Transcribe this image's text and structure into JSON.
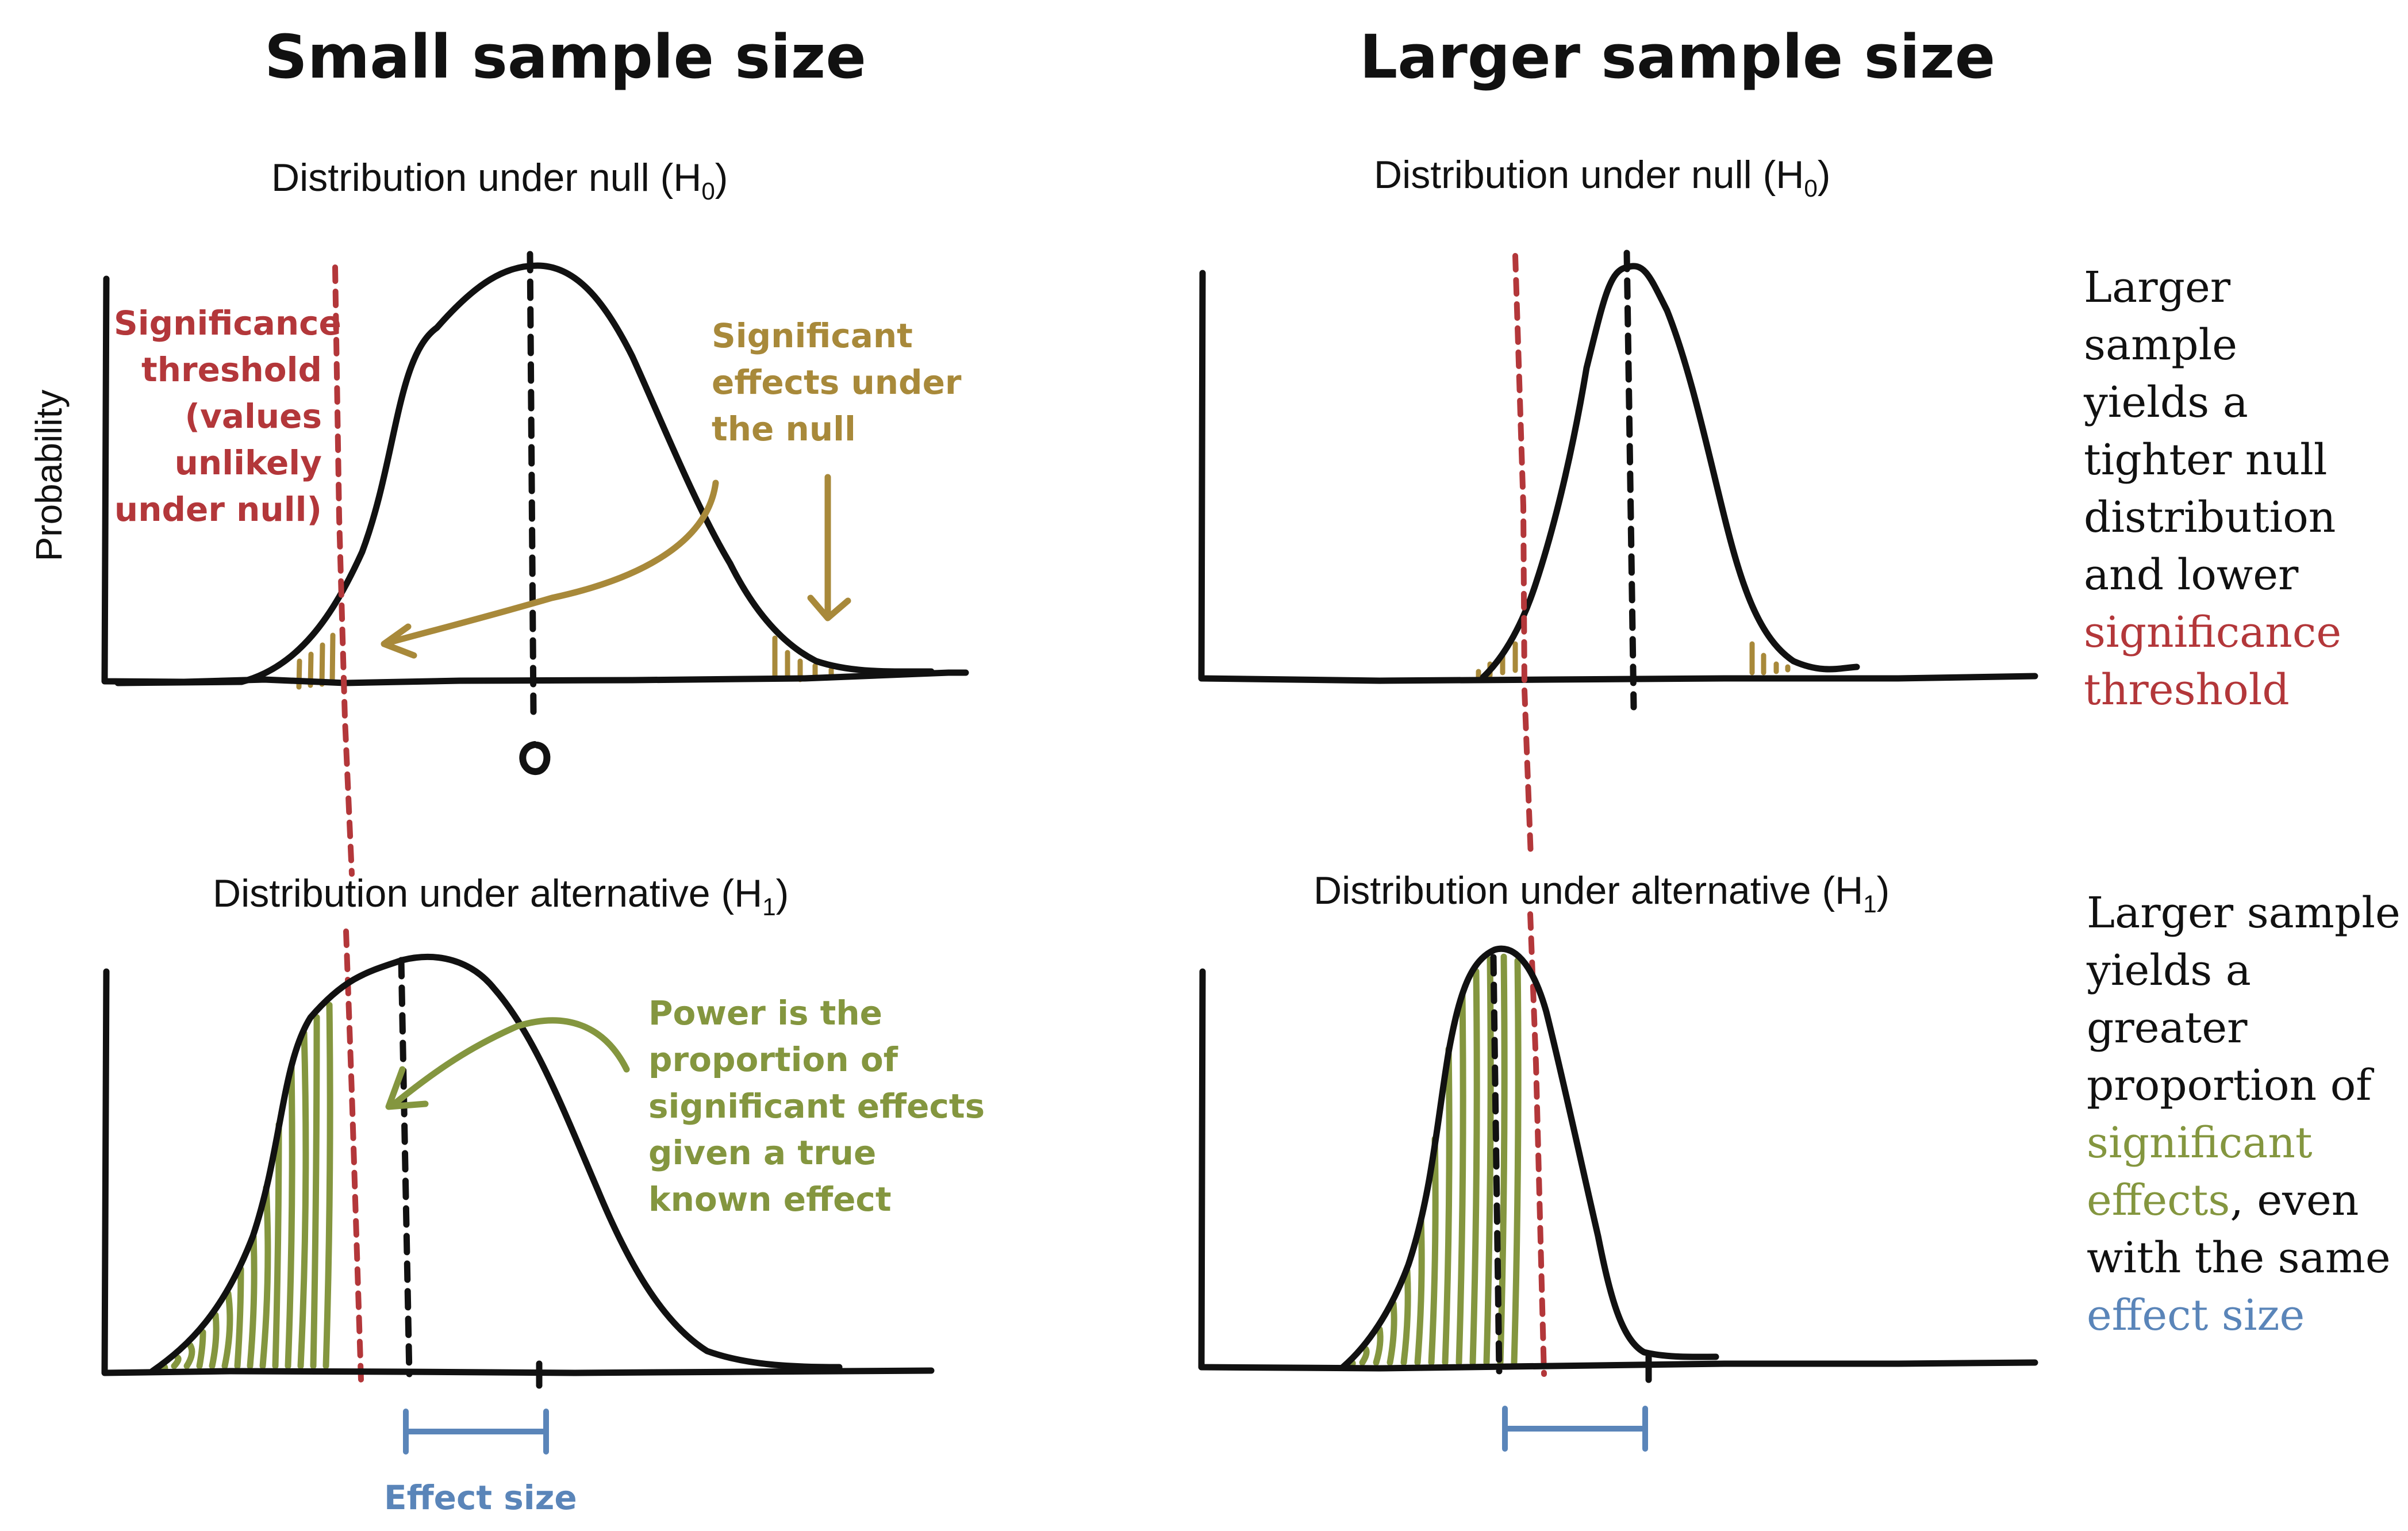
{
  "titles": {
    "left": "Small sample size",
    "right": "Larger sample size"
  },
  "subtitles": {
    "null_prefix": "Distribution under null (H",
    "null_sub": "0",
    "alt_prefix": "Distribution under alternative (H",
    "alt_sub": "1",
    "suffix": ")"
  },
  "y_axis_label": "Probability",
  "zero_label": "0",
  "annotations": {
    "threshold": [
      "Significance",
      "threshold",
      "(values",
      "unlikely",
      "under null)"
    ],
    "null_effects": [
      "Significant",
      "effects under",
      "the null"
    ],
    "power": [
      "Power is the",
      "proportion of",
      "significant effects",
      "given a true",
      "known effect"
    ],
    "effect_size": "Effect size"
  },
  "notes": {
    "top": {
      "lines": [
        "Larger",
        "sample",
        "yields a",
        "tighter null",
        "distribution",
        "and lower"
      ],
      "highlight": [
        "significance",
        "threshold"
      ]
    },
    "bottom": {
      "lines": [
        "Larger sample",
        "yields a",
        "greater",
        "proportion of"
      ],
      "highlight_1": "significant",
      "highlight_2": "effects",
      "after_highlight_2": ", even",
      "line_after": "with the same",
      "highlight_3": "effect size"
    }
  },
  "colors": {
    "threshold": "#b3373a",
    "null_effects": "#a8893a",
    "power": "#84963f",
    "effect_size": "#5a85b9",
    "ink": "#111111"
  }
}
